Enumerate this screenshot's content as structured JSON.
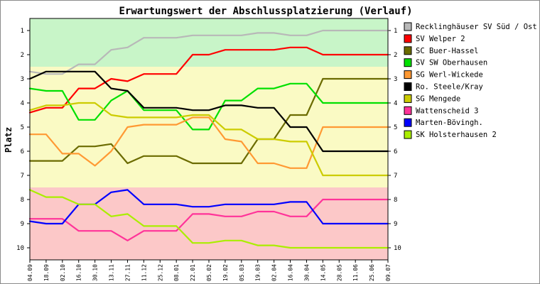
{
  "chart_data": {
    "type": "line",
    "title": "Erwartungswert der Abschlussplatzierung (Verlauf)",
    "ylabel": "Platz",
    "xlabel": "",
    "ylim": [
      1,
      10
    ],
    "y_inverted": true,
    "yticks": [
      "1",
      "2",
      "3",
      "4",
      "5",
      "6",
      "7",
      "8",
      "9",
      "10"
    ],
    "categories": [
      "04.09",
      "18.09",
      "02.10",
      "16.10",
      "30.10",
      "13.11",
      "27.11",
      "11.12",
      "25.12",
      "08.01",
      "22.01",
      "05.02",
      "19.02",
      "05.03",
      "19.03",
      "02.04",
      "16.04",
      "30.04",
      "14.05",
      "28.05",
      "11.06",
      "25.06",
      "09.07"
    ],
    "bands": [
      {
        "from": 0.5,
        "to": 2.5,
        "color": "#c8f5c8"
      },
      {
        "from": 2.5,
        "to": 7.5,
        "color": "#fafac4"
      },
      {
        "from": 7.5,
        "to": 10.5,
        "color": "#fcc8c8"
      }
    ],
    "grid": false,
    "legend_position": "right",
    "series": [
      {
        "name": "Recklinghäuser SV Süd / Ost",
        "color": "#b8b8b8",
        "values": [
          2.7,
          2.8,
          2.8,
          2.4,
          2.4,
          1.8,
          1.7,
          1.3,
          1.3,
          1.3,
          1.2,
          1.2,
          1.2,
          1.2,
          1.1,
          1.1,
          1.2,
          1.2,
          1.0,
          1.0,
          1.0,
          1.0,
          1.0
        ]
      },
      {
        "name": "SV Welper 2",
        "color": "#ff0000",
        "values": [
          4.4,
          4.2,
          4.2,
          3.4,
          3.4,
          3.0,
          3.1,
          2.8,
          2.8,
          2.8,
          2.0,
          2.0,
          1.8,
          1.8,
          1.8,
          1.8,
          1.7,
          1.7,
          2.0,
          2.0,
          2.0,
          2.0,
          2.0
        ]
      },
      {
        "name": "SC Buer-Hassel",
        "color": "#6b6b00",
        "values": [
          6.4,
          6.4,
          6.4,
          5.8,
          5.8,
          5.7,
          6.5,
          6.2,
          6.2,
          6.2,
          6.5,
          6.5,
          6.5,
          6.5,
          5.5,
          5.5,
          4.5,
          4.5,
          3.0,
          3.0,
          3.0,
          3.0,
          3.0
        ]
      },
      {
        "name": "SV SW Oberhausen",
        "color": "#00e000",
        "values": [
          3.4,
          3.5,
          3.5,
          4.7,
          4.7,
          3.9,
          3.5,
          4.3,
          4.3,
          4.3,
          5.1,
          5.1,
          3.9,
          3.9,
          3.4,
          3.4,
          3.2,
          3.2,
          4.0,
          4.0,
          4.0,
          4.0,
          4.0
        ]
      },
      {
        "name": "SG Werl-Wickede",
        "color": "#ff9933",
        "values": [
          5.3,
          5.3,
          6.1,
          6.1,
          6.6,
          6.0,
          5.0,
          4.9,
          4.9,
          4.9,
          4.6,
          4.6,
          5.5,
          5.6,
          6.5,
          6.5,
          6.7,
          6.7,
          5.0,
          5.0,
          5.0,
          5.0,
          5.0
        ]
      },
      {
        "name": "Ro. Steele/Kray",
        "color": "#000000",
        "values": [
          3.0,
          2.7,
          2.7,
          2.7,
          2.7,
          3.4,
          3.5,
          4.2,
          4.2,
          4.2,
          4.3,
          4.3,
          4.1,
          4.1,
          4.2,
          4.2,
          5.0,
          5.0,
          6.0,
          6.0,
          6.0,
          6.0,
          6.0
        ]
      },
      {
        "name": "SG Mengede",
        "color": "#cccc00",
        "values": [
          4.3,
          4.1,
          4.1,
          4.0,
          4.0,
          4.5,
          4.6,
          4.6,
          4.6,
          4.6,
          4.5,
          4.5,
          5.1,
          5.1,
          5.5,
          5.5,
          5.6,
          5.6,
          7.0,
          7.0,
          7.0,
          7.0,
          7.0
        ]
      },
      {
        "name": "Wattenscheid 3",
        "color": "#ff3399",
        "values": [
          8.8,
          8.8,
          8.8,
          9.3,
          9.3,
          9.3,
          9.7,
          9.3,
          9.3,
          9.3,
          8.6,
          8.6,
          8.7,
          8.7,
          8.5,
          8.5,
          8.7,
          8.7,
          8.0,
          8.0,
          8.0,
          8.0,
          8.0
        ]
      },
      {
        "name": "Marten-Bövingh.",
        "color": "#0000ff",
        "values": [
          8.9,
          9.0,
          9.0,
          8.2,
          8.2,
          7.7,
          7.6,
          8.2,
          8.2,
          8.2,
          8.3,
          8.3,
          8.2,
          8.2,
          8.2,
          8.2,
          8.1,
          8.1,
          9.0,
          9.0,
          9.0,
          9.0,
          9.0
        ]
      },
      {
        "name": "SK Holsterhausen 2",
        "color": "#aaee00",
        "values": [
          7.6,
          7.9,
          7.9,
          8.2,
          8.2,
          8.7,
          8.6,
          9.1,
          9.1,
          9.1,
          9.8,
          9.8,
          9.7,
          9.7,
          9.9,
          9.9,
          10.0,
          10.0,
          10.0,
          10.0,
          10.0,
          10.0,
          10.0
        ]
      }
    ]
  }
}
